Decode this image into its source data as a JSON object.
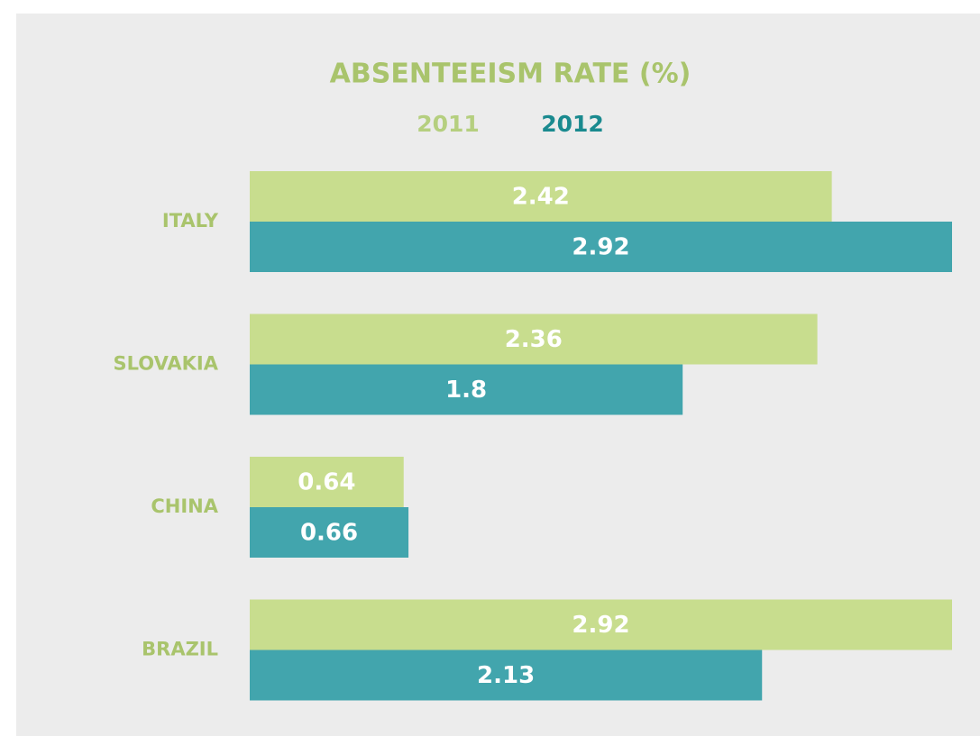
{
  "chart_data": {
    "type": "barh",
    "title": "ABSENTEEISM RATE (%)",
    "categories": [
      "ITALY",
      "SLOVAKIA",
      "CHINA",
      "BRAZIL"
    ],
    "series": [
      {
        "name": "2011",
        "color": "#c8dd8e",
        "values": [
          2.42,
          2.36,
          0.64,
          2.92
        ]
      },
      {
        "name": "2012",
        "color": "#42a5ad",
        "values": [
          2.92,
          1.8,
          0.66,
          2.13
        ]
      }
    ],
    "xlim": [
      0,
      2.92
    ]
  }
}
